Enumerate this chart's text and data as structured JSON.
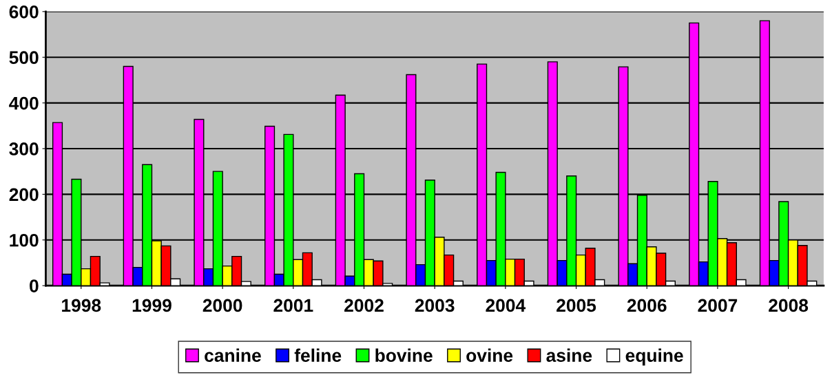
{
  "chart_data": {
    "type": "bar",
    "categories": [
      "1998",
      "1999",
      "2000",
      "2001",
      "2002",
      "2003",
      "2004",
      "2005",
      "2006",
      "2007",
      "2008"
    ],
    "series": [
      {
        "name": "canine",
        "color": "#ff00ff",
        "values": [
          357,
          480,
          364,
          349,
          417,
          462,
          485,
          490,
          479,
          575,
          580
        ]
      },
      {
        "name": "feline",
        "color": "#0000ff",
        "values": [
          25,
          40,
          37,
          25,
          21,
          46,
          55,
          55,
          48,
          52,
          55
        ]
      },
      {
        "name": "bovine",
        "color": "#00ff00",
        "values": [
          233,
          265,
          250,
          331,
          245,
          231,
          248,
          240,
          198,
          228,
          184
        ]
      },
      {
        "name": "ovine",
        "color": "#ffff00",
        "values": [
          37,
          98,
          43,
          57,
          57,
          106,
          58,
          67,
          85,
          103,
          100
        ]
      },
      {
        "name": "asine",
        "color": "#ff0000",
        "values": [
          64,
          87,
          64,
          72,
          54,
          67,
          58,
          82,
          71,
          94,
          88
        ]
      },
      {
        "name": "equine",
        "color": "#ffffff",
        "values": [
          6,
          15,
          9,
          13,
          5,
          10,
          10,
          13,
          10,
          13,
          10
        ]
      }
    ],
    "ylim": [
      0,
      600
    ],
    "yticks": [
      0,
      100,
      200,
      300,
      400,
      500,
      600
    ],
    "grid": "y",
    "legend": "bottom"
  }
}
